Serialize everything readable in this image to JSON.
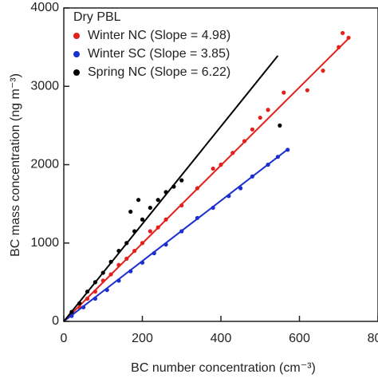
{
  "chart_data": {
    "type": "scatter",
    "x_label": "BC number concentration (cm⁻³)",
    "y_label": "BC mass concentration (ng m⁻³)",
    "legend_title": "Dry PBL",
    "legend": "upper left",
    "xlim": [
      0,
      800
    ],
    "xticks": [
      0,
      200,
      400,
      600,
      800
    ],
    "ylim": [
      0,
      4000
    ],
    "yticks": [
      0,
      1000,
      2000,
      3000,
      4000
    ],
    "series": [
      {
        "name": "Winter NC (Slope = 4.98)",
        "color": "#e3201b",
        "x": [
          20,
          40,
          60,
          80,
          100,
          120,
          140,
          160,
          180,
          200,
          220,
          240,
          260,
          300,
          340,
          380,
          400,
          430,
          460,
          480,
          500,
          520,
          560,
          620,
          660,
          700,
          710,
          725
        ],
        "values": [
          90,
          180,
          290,
          380,
          520,
          600,
          720,
          800,
          900,
          1000,
          1150,
          1200,
          1300,
          1480,
          1700,
          1950,
          2000,
          2150,
          2300,
          2450,
          2600,
          2700,
          2920,
          2950,
          3200,
          3500,
          3680,
          3620
        ],
        "fit_x": [
          0,
          725
        ],
        "fit_values": [
          0,
          3610
        ]
      },
      {
        "name": "Winter SC (Slope = 3.85)",
        "color": "#1b2fcf",
        "x": [
          20,
          50,
          80,
          110,
          140,
          170,
          200,
          230,
          260,
          300,
          340,
          380,
          420,
          450,
          480,
          520,
          545,
          570
        ],
        "values": [
          70,
          180,
          290,
          400,
          520,
          640,
          750,
          870,
          980,
          1150,
          1320,
          1450,
          1600,
          1700,
          1850,
          2000,
          2100,
          2190
        ],
        "fit_x": [
          0,
          570
        ],
        "fit_values": [
          0,
          2195
        ]
      },
      {
        "name": "Spring NC (Slope = 6.22)",
        "color": "#000000",
        "x": [
          20,
          40,
          60,
          80,
          100,
          120,
          140,
          160,
          170,
          180,
          190,
          200,
          220,
          240,
          260,
          280,
          300,
          550
        ],
        "values": [
          120,
          230,
          380,
          500,
          620,
          760,
          900,
          1000,
          1400,
          1150,
          1550,
          1300,
          1450,
          1550,
          1650,
          1720,
          1800,
          2500
        ],
        "fit_x": [
          0,
          545
        ],
        "fit_values": [
          0,
          3390
        ]
      }
    ]
  }
}
